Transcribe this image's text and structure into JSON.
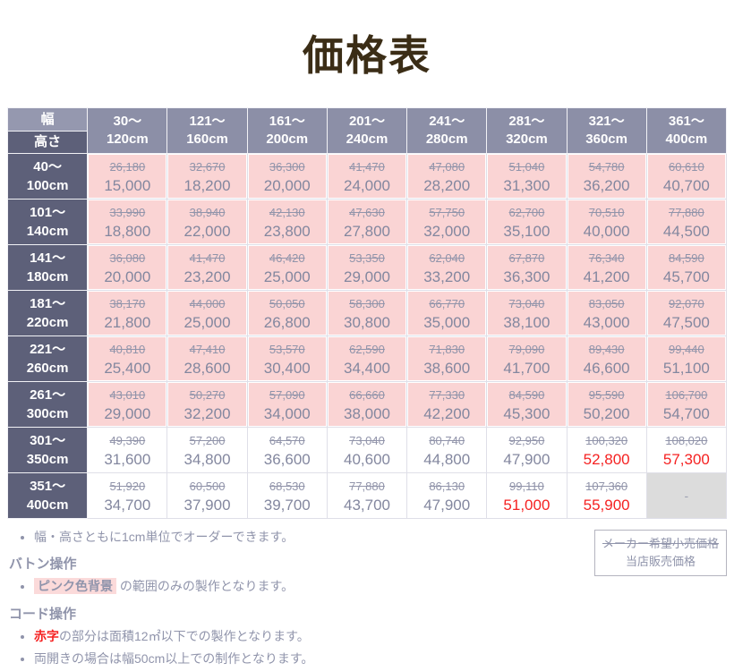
{
  "title": "価格表",
  "colors": {
    "title_brown": "#3b2d16",
    "header_slate": "#8c8fa7",
    "header_dark_slate": "#5d6079",
    "pink_bg": "#fad4d4",
    "price_gray": "#83879f",
    "accent_red": "#f52222",
    "disabled_gray": "#dcdcdc"
  },
  "table": {
    "corner": {
      "top": "幅",
      "bottom": "高さ"
    },
    "col_headers": [
      [
        "30〜",
        "120cm"
      ],
      [
        "121〜",
        "160cm"
      ],
      [
        "161〜",
        "200cm"
      ],
      [
        "201〜",
        "240cm"
      ],
      [
        "241〜",
        "280cm"
      ],
      [
        "281〜",
        "320cm"
      ],
      [
        "321〜",
        "360cm"
      ],
      [
        "361〜",
        "400cm"
      ]
    ],
    "rows": [
      {
        "header": [
          "40〜",
          "100cm"
        ],
        "pink": true,
        "cells": [
          {
            "msrp": "26,180",
            "price": "15,000"
          },
          {
            "msrp": "32,670",
            "price": "18,200"
          },
          {
            "msrp": "36,300",
            "price": "20,000"
          },
          {
            "msrp": "41,470",
            "price": "24,000"
          },
          {
            "msrp": "47,080",
            "price": "28,200"
          },
          {
            "msrp": "51,040",
            "price": "31,300"
          },
          {
            "msrp": "54,780",
            "price": "36,200"
          },
          {
            "msrp": "60,610",
            "price": "40,700"
          }
        ]
      },
      {
        "header": [
          "101〜",
          "140cm"
        ],
        "pink": true,
        "cells": [
          {
            "msrp": "33,990",
            "price": "18,800"
          },
          {
            "msrp": "38,940",
            "price": "22,000"
          },
          {
            "msrp": "42,130",
            "price": "23,800"
          },
          {
            "msrp": "47,630",
            "price": "27,800"
          },
          {
            "msrp": "57,750",
            "price": "32,000"
          },
          {
            "msrp": "62,700",
            "price": "35,100"
          },
          {
            "msrp": "70,510",
            "price": "40,000"
          },
          {
            "msrp": "77,880",
            "price": "44,500"
          }
        ]
      },
      {
        "header": [
          "141〜",
          "180cm"
        ],
        "pink": true,
        "cells": [
          {
            "msrp": "36,080",
            "price": "20,000"
          },
          {
            "msrp": "41,470",
            "price": "23,200"
          },
          {
            "msrp": "46,420",
            "price": "25,000"
          },
          {
            "msrp": "53,350",
            "price": "29,000"
          },
          {
            "msrp": "62,040",
            "price": "33,200"
          },
          {
            "msrp": "67,870",
            "price": "36,300"
          },
          {
            "msrp": "76,340",
            "price": "41,200"
          },
          {
            "msrp": "84,590",
            "price": "45,700"
          }
        ]
      },
      {
        "header": [
          "181〜",
          "220cm"
        ],
        "pink": true,
        "cells": [
          {
            "msrp": "38,170",
            "price": "21,800"
          },
          {
            "msrp": "44,000",
            "price": "25,000"
          },
          {
            "msrp": "50,050",
            "price": "26,800"
          },
          {
            "msrp": "58,300",
            "price": "30,800"
          },
          {
            "msrp": "66,770",
            "price": "35,000"
          },
          {
            "msrp": "73,040",
            "price": "38,100"
          },
          {
            "msrp": "83,050",
            "price": "43,000"
          },
          {
            "msrp": "92,070",
            "price": "47,500"
          }
        ]
      },
      {
        "header": [
          "221〜",
          "260cm"
        ],
        "pink": true,
        "cells": [
          {
            "msrp": "40,810",
            "price": "25,400"
          },
          {
            "msrp": "47,410",
            "price": "28,600"
          },
          {
            "msrp": "53,570",
            "price": "30,400"
          },
          {
            "msrp": "62,590",
            "price": "34,400"
          },
          {
            "msrp": "71,830",
            "price": "38,600"
          },
          {
            "msrp": "79,090",
            "price": "41,700"
          },
          {
            "msrp": "89,430",
            "price": "46,600"
          },
          {
            "msrp": "99,440",
            "price": "51,100"
          }
        ]
      },
      {
        "header": [
          "261〜",
          "300cm"
        ],
        "pink": true,
        "cells": [
          {
            "msrp": "43,010",
            "price": "29,000"
          },
          {
            "msrp": "50,270",
            "price": "32,200"
          },
          {
            "msrp": "57,090",
            "price": "34,000"
          },
          {
            "msrp": "66,660",
            "price": "38,000"
          },
          {
            "msrp": "77,330",
            "price": "42,200"
          },
          {
            "msrp": "84,590",
            "price": "45,300"
          },
          {
            "msrp": "95,590",
            "price": "50,200"
          },
          {
            "msrp": "106,700",
            "price": "54,700"
          }
        ]
      },
      {
        "header": [
          "301〜",
          "350cm"
        ],
        "pink": false,
        "cells": [
          {
            "msrp": "49,390",
            "price": "31,600"
          },
          {
            "msrp": "57,200",
            "price": "34,800"
          },
          {
            "msrp": "64,570",
            "price": "36,600"
          },
          {
            "msrp": "73,040",
            "price": "40,600"
          },
          {
            "msrp": "80,740",
            "price": "44,800"
          },
          {
            "msrp": "92,950",
            "price": "47,900"
          },
          {
            "msrp": "100,320",
            "price": "52,800",
            "red": true
          },
          {
            "msrp": "108,020",
            "price": "57,300",
            "red": true
          }
        ]
      },
      {
        "header": [
          "351〜",
          "400cm"
        ],
        "pink": false,
        "cells": [
          {
            "msrp": "51,920",
            "price": "34,700"
          },
          {
            "msrp": "60,500",
            "price": "37,900"
          },
          {
            "msrp": "68,530",
            "price": "39,700"
          },
          {
            "msrp": "77,880",
            "price": "43,700"
          },
          {
            "msrp": "86,130",
            "price": "47,900"
          },
          {
            "msrp": "99,110",
            "price": "51,000",
            "red": true
          },
          {
            "msrp": "107,360",
            "price": "55,900",
            "red": true
          },
          {
            "dash": "-"
          }
        ]
      }
    ]
  },
  "legend": {
    "line1": "メーカー希望小売価格",
    "line2": "当店販売価格"
  },
  "notes": {
    "bullet1": "幅・高さともに1cm単位でオーダーできます。",
    "heading1": "バトン操作",
    "bullet2_highlight": "ピンク色背景",
    "bullet2_rest": " の範囲のみの製作となります。",
    "heading2": "コード操作",
    "bullet3_red": "赤字",
    "bullet3_rest": "の部分は面積12㎡以下での製作となります。",
    "bullet4": "両開きの場合は幅50cm以上での制作となります。"
  }
}
